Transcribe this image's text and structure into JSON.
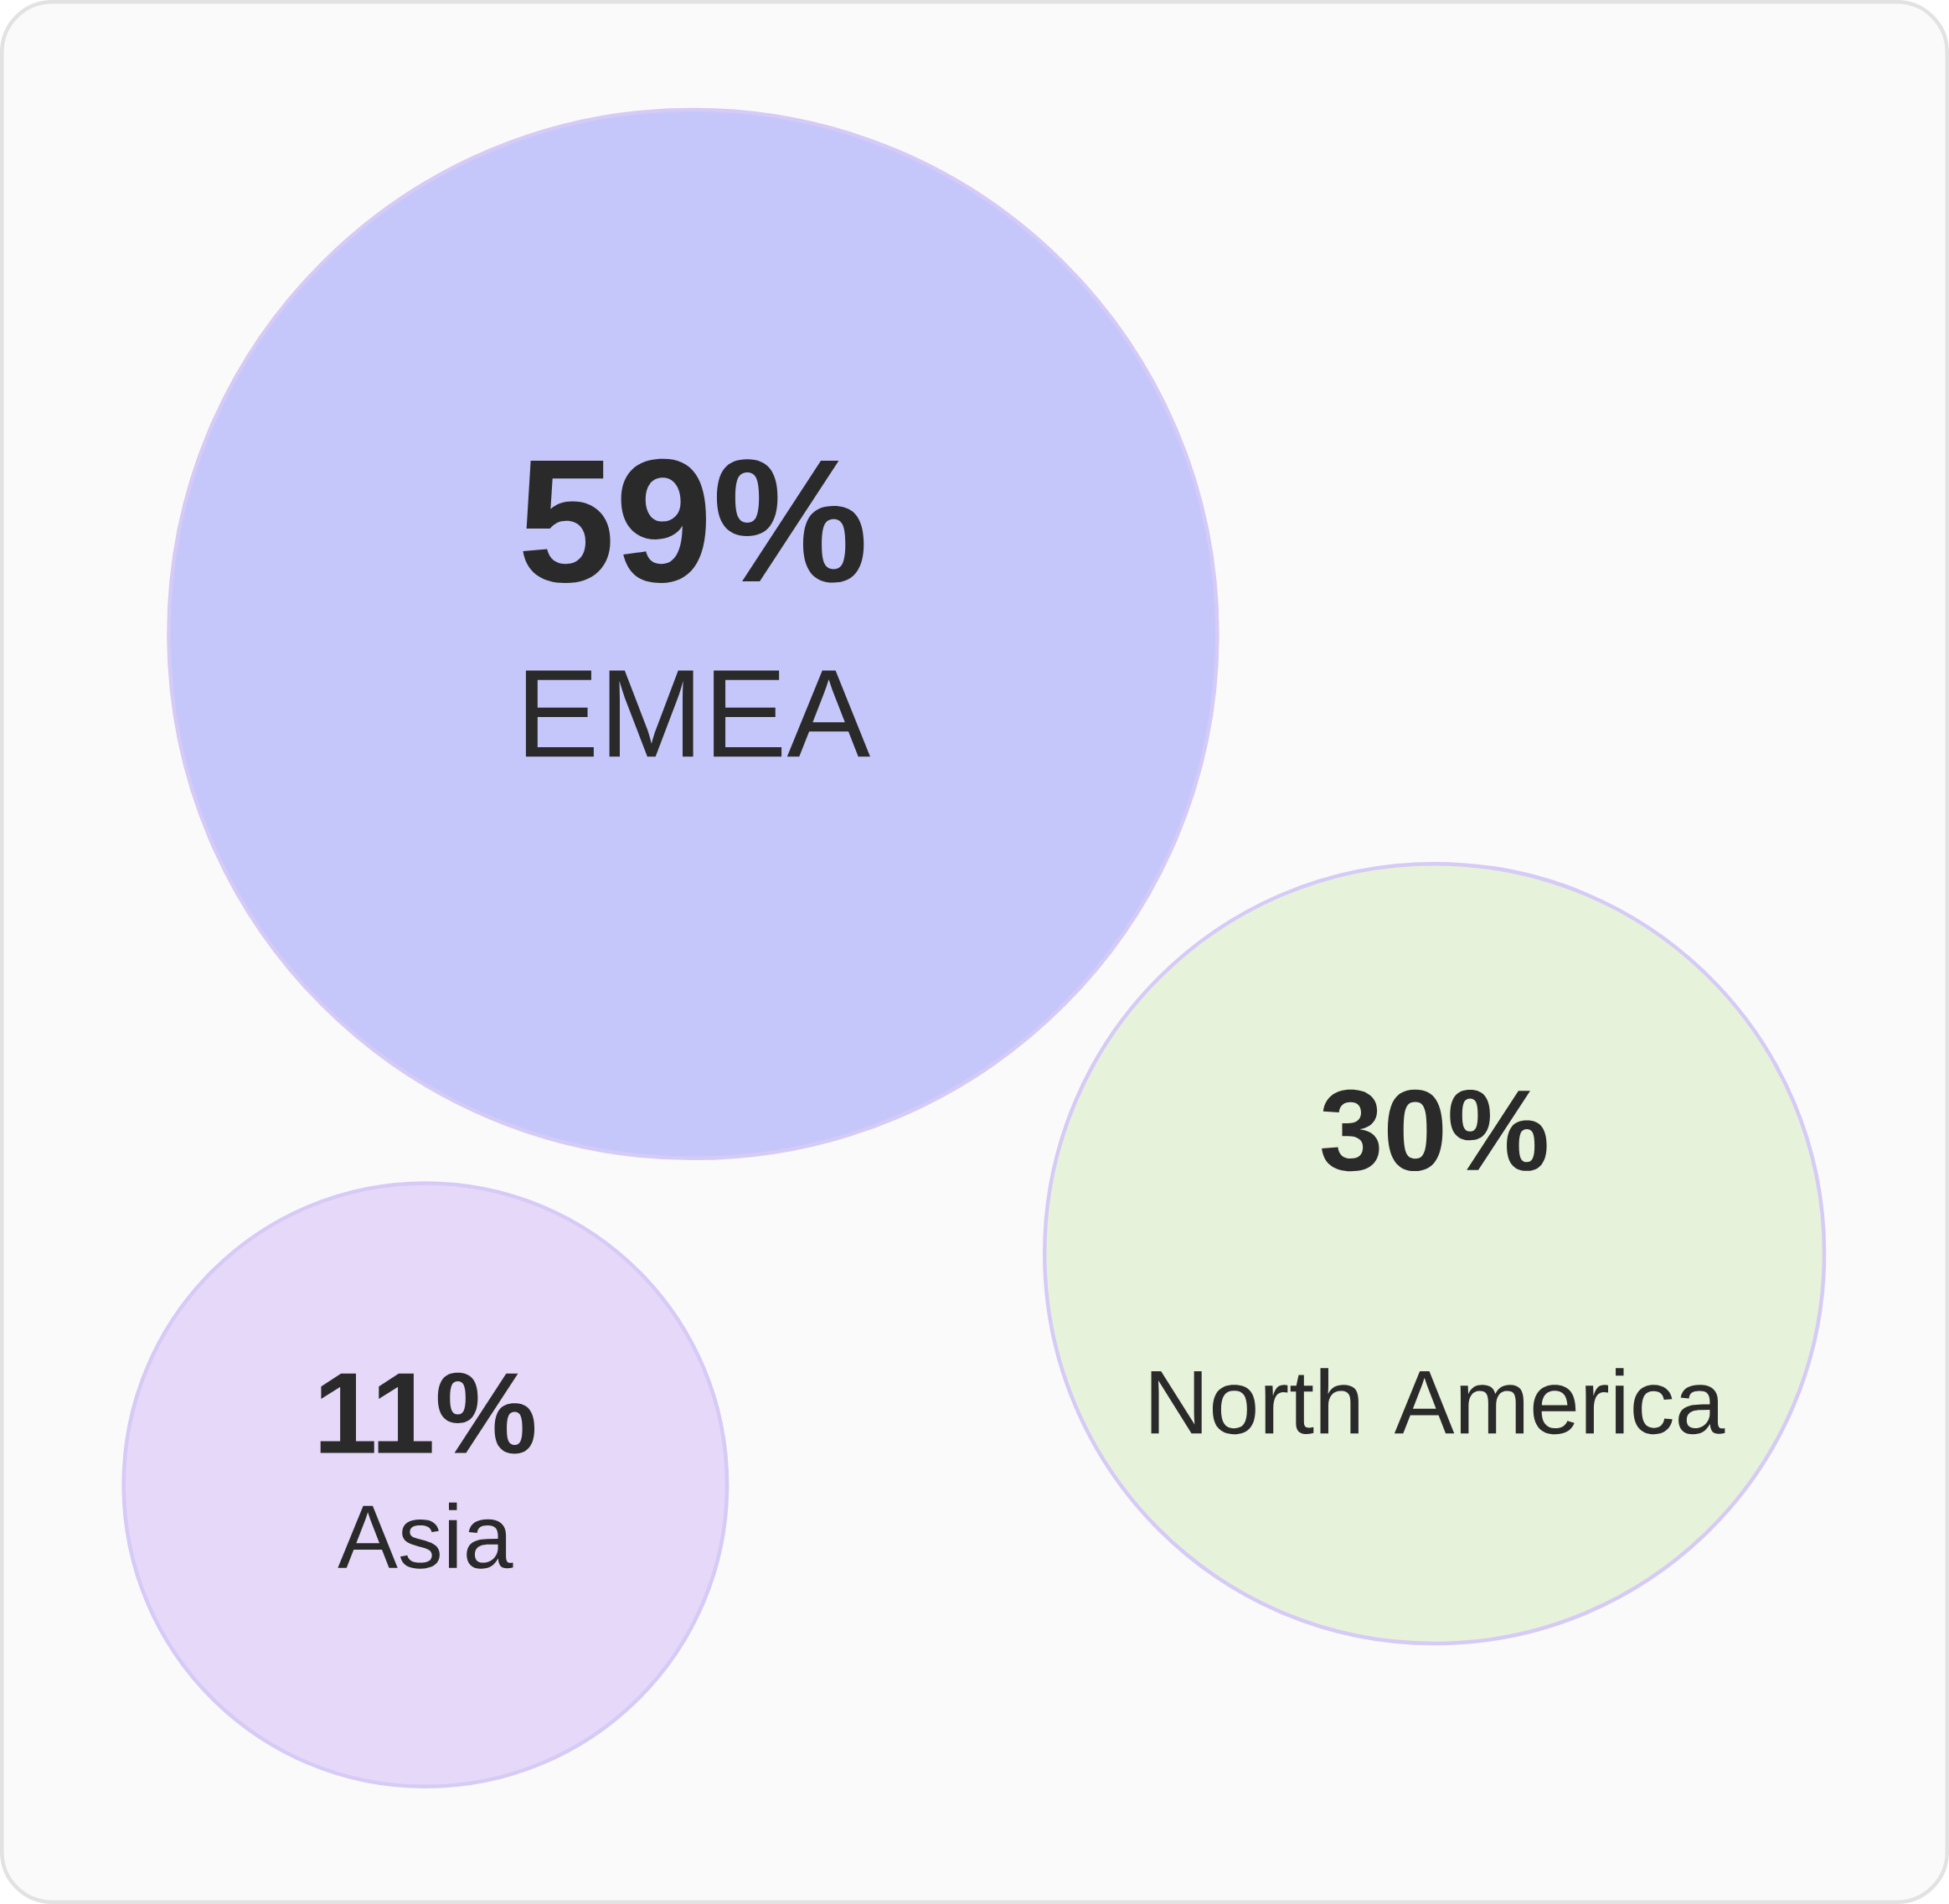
{
  "chart_data": {
    "type": "other",
    "categories": [
      "EMEA",
      "North America",
      "Asia"
    ],
    "values": [
      59,
      30,
      11
    ],
    "value_labels": [
      "59%",
      "30%",
      "11%"
    ],
    "colors": [
      "#c5c7fa",
      "#e6f3da",
      "#e6d8f8"
    ]
  }
}
